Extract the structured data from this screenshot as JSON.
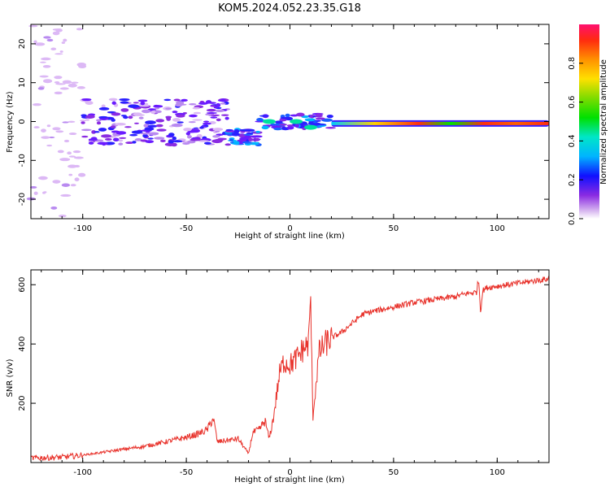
{
  "title": "KOM5.2024.052.23.35.G18",
  "chart_data": [
    {
      "type": "heatmap",
      "xlabel": "Height of straight line (km)",
      "ylabel": "Frequency (Hz)",
      "xlim": [
        -125,
        125
      ],
      "ylim": [
        -25,
        25
      ],
      "xticks": [
        "-100",
        "-50",
        "0",
        "50",
        "100"
      ],
      "yticks": [
        "-20",
        "-10",
        "0",
        "10",
        "20"
      ],
      "colorbar": {
        "label": "Normalized spectral amplitude",
        "range": [
          0,
          1
        ],
        "ticks": [
          "0.0",
          "0.2",
          "0.4",
          "0.6",
          "0.8"
        ]
      },
      "features": [
        {
          "x": [
            -125,
            -100
          ],
          "freq_spread": 25,
          "amplitude": 0.05
        },
        {
          "x": [
            -100,
            -30
          ],
          "freq_center": 0,
          "freq_spread": 6,
          "amplitude": 0.15
        },
        {
          "x": [
            -30,
            -15
          ],
          "freq_center": -4,
          "freq_spread": 2,
          "amplitude": 0.25
        },
        {
          "x": [
            -15,
            20
          ],
          "freq_center": 0,
          "freq_spread": 2,
          "amplitude": 0.35
        },
        {
          "x": [
            20,
            125
          ],
          "freq_center": -0.5,
          "freq_spread": 0.5,
          "amplitude": 0.9
        }
      ]
    },
    {
      "type": "line",
      "xlabel": "Height of straight line (km)",
      "ylabel": "SNR (v/v)",
      "xlim": [
        -125,
        125
      ],
      "ylim": [
        0,
        650
      ],
      "xticks": [
        "-100",
        "-50",
        "0",
        "50",
        "100"
      ],
      "yticks": [
        "200",
        "400",
        "600"
      ],
      "series": [
        {
          "color": "#e8312a",
          "x": [
            -125,
            -110,
            -100,
            -90,
            -80,
            -70,
            -60,
            -50,
            -45,
            -40,
            -37,
            -35,
            -30,
            -25,
            -20,
            -18,
            -15,
            -12,
            -10,
            -8,
            -5,
            -3,
            0,
            3,
            6,
            9,
            10,
            11,
            14,
            17,
            20,
            25,
            30,
            35,
            40,
            50,
            60,
            70,
            80,
            85,
            90,
            91,
            92,
            93,
            95,
            100,
            105,
            110,
            115,
            120,
            125
          ],
          "y": [
            15,
            18,
            25,
            35,
            45,
            55,
            70,
            85,
            95,
            110,
            150,
            70,
            75,
            80,
            30,
            100,
            110,
            140,
            80,
            150,
            300,
            340,
            330,
            350,
            380,
            400,
            560,
            150,
            370,
            400,
            420,
            440,
            470,
            500,
            510,
            525,
            540,
            550,
            560,
            570,
            575,
            620,
            510,
            580,
            590,
            595,
            600,
            605,
            610,
            615,
            620
          ]
        }
      ]
    }
  ]
}
